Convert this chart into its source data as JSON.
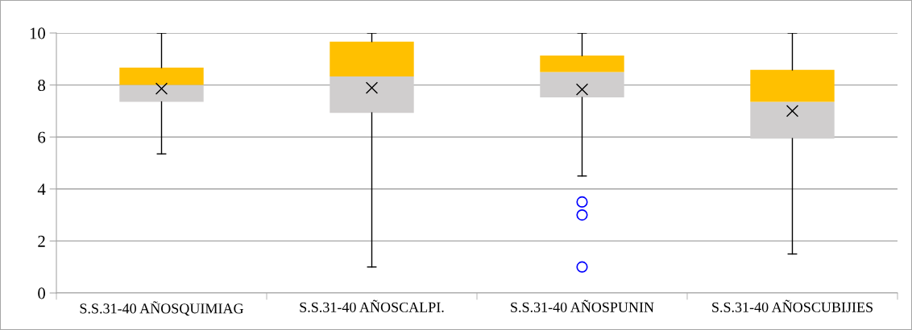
{
  "chart_data": {
    "type": "box",
    "categories": [
      "S.S.31-40 AÑOSQUIMIAG",
      "S.S.31-40 AÑOSCALPI.",
      "S.S.31-40 AÑOSPUNIN",
      "S.S.31-40 AÑOSCUBIJIES"
    ],
    "series": [
      {
        "color": "#ffc000",
        "colors": [
          "#d0cece",
          "#d0cece",
          "#d0cece",
          "#d0cece"
        ],
        "boxes": [
          {
            "low": 5.35,
            "q1": 7.35,
            "median": 8.0,
            "q3": 8.67,
            "high": 10,
            "mean": 7.86
          },
          {
            "low": 1.0,
            "q1": 6.93,
            "median": 8.33,
            "q3": 9.67,
            "high": 10,
            "mean": 7.89
          },
          {
            "low": 4.5,
            "q1": 7.52,
            "median": 8.5,
            "q3": 9.13,
            "high": 10,
            "mean": 7.83,
            "outliers": [
              3.5,
              3.0,
              1.0
            ]
          },
          {
            "low": 1.5,
            "q1": 5.94,
            "median": 7.35,
            "q3": 8.58,
            "high": 10,
            "mean": 7.0
          }
        ]
      }
    ],
    "ylim": [
      0,
      10
    ],
    "yticks": [
      0,
      2,
      4,
      6,
      8,
      10
    ],
    "grid": "y"
  }
}
